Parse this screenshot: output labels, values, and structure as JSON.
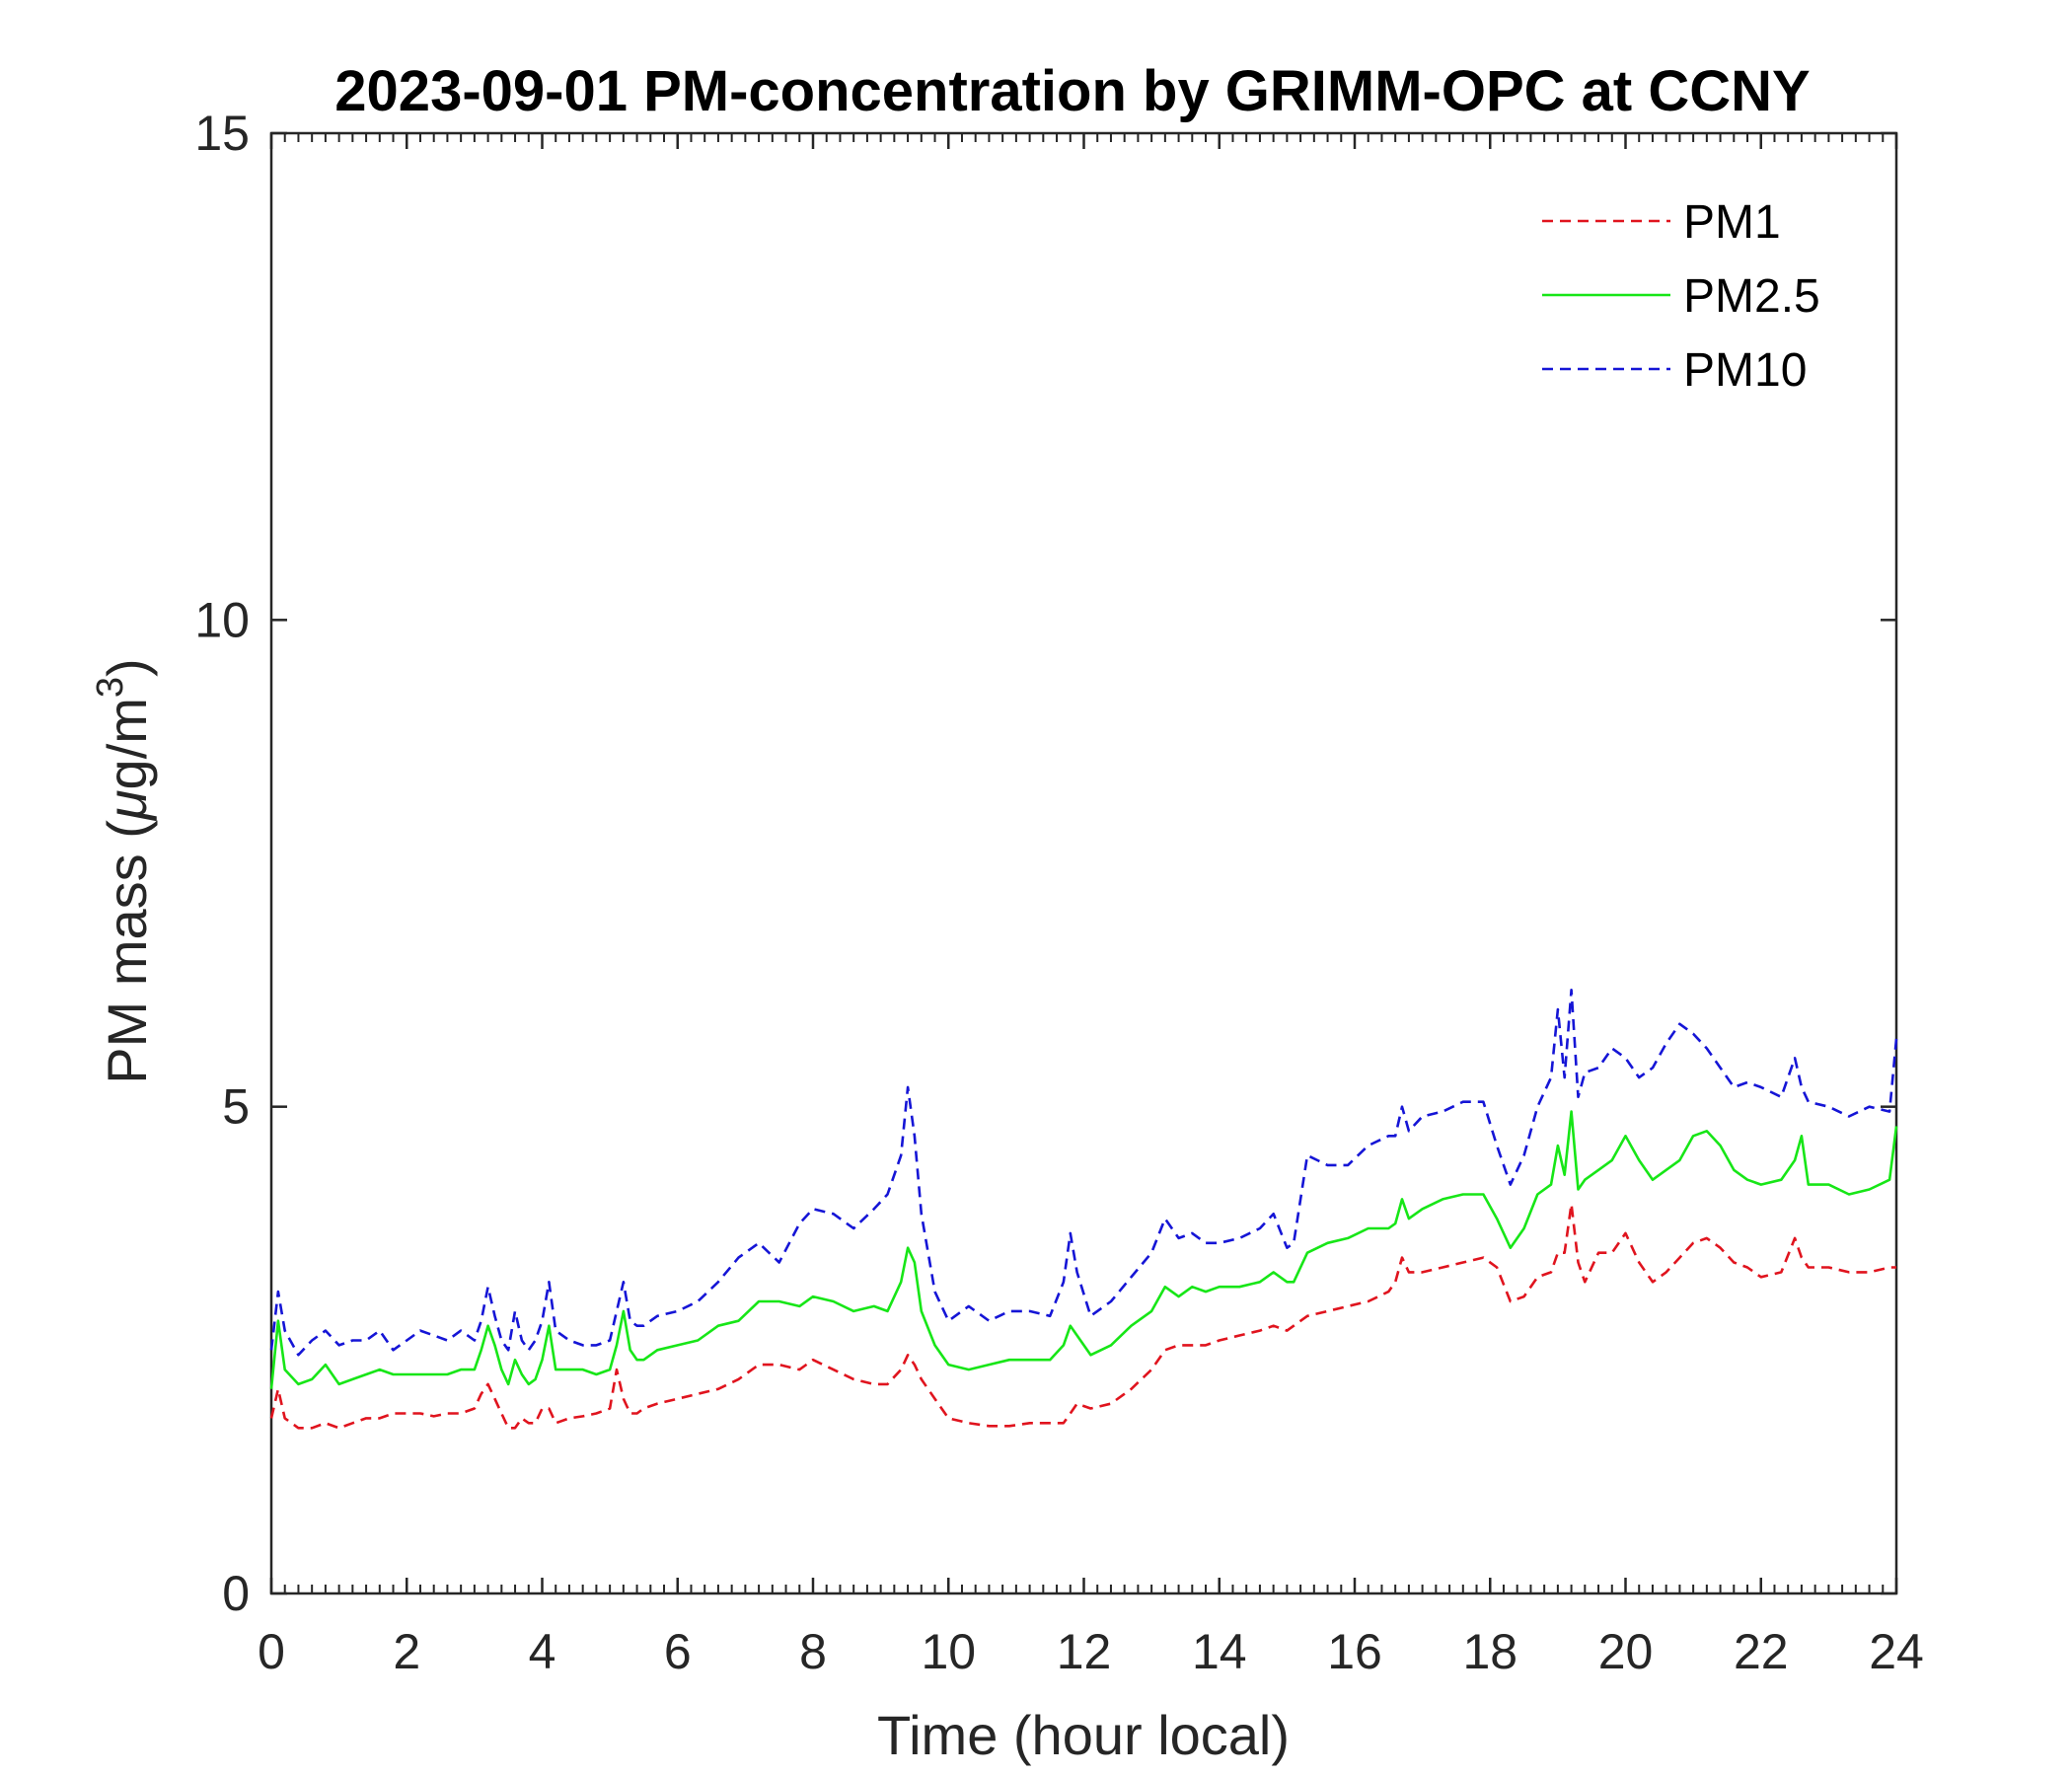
{
  "chart_data": {
    "type": "line",
    "title": "2023-09-01 PM-concentration by GRIMM-OPC at CCNY",
    "xlabel": "Time (hour local)",
    "ylabel_main": "PM mass (",
    "ylabel_mu": "μ",
    "ylabel_unit": "g/m",
    "ylabel_sup": "3",
    "ylabel_close": ")",
    "xlim": [
      0,
      24
    ],
    "ylim": [
      0,
      15
    ],
    "xticks": [
      0,
      2,
      4,
      6,
      8,
      10,
      12,
      14,
      16,
      18,
      20,
      22,
      24
    ],
    "xtick_labels": [
      "0",
      "2",
      "4",
      "6",
      "8",
      "10",
      "12",
      "14",
      "16",
      "18",
      "20",
      "22",
      "24"
    ],
    "yticks": [
      0,
      5,
      10,
      15
    ],
    "ytick_labels": [
      "0",
      "5",
      "10",
      "15"
    ],
    "x_minor_step": 0.2,
    "grid": false,
    "legend_position": "top-right",
    "x": [
      0,
      0.1,
      0.2,
      0.4,
      0.6,
      0.8,
      1.0,
      1.2,
      1.4,
      1.6,
      1.8,
      2.0,
      2.2,
      2.4,
      2.6,
      2.8,
      3.0,
      3.1,
      3.2,
      3.3,
      3.4,
      3.5,
      3.6,
      3.7,
      3.8,
      3.9,
      4.0,
      4.1,
      4.2,
      4.4,
      4.6,
      4.8,
      5.0,
      5.1,
      5.2,
      5.3,
      5.4,
      5.5,
      5.7,
      6.0,
      6.3,
      6.6,
      6.9,
      7.2,
      7.5,
      7.8,
      8.0,
      8.3,
      8.6,
      8.9,
      9.1,
      9.3,
      9.4,
      9.5,
      9.6,
      9.8,
      10.0,
      10.3,
      10.6,
      10.9,
      11.2,
      11.5,
      11.7,
      11.8,
      11.9,
      12.1,
      12.4,
      12.7,
      13.0,
      13.2,
      13.4,
      13.6,
      13.8,
      14.0,
      14.3,
      14.6,
      14.8,
      15.0,
      15.1,
      15.3,
      15.6,
      15.9,
      16.2,
      16.5,
      16.6,
      16.7,
      16.8,
      17.0,
      17.3,
      17.6,
      17.9,
      18.1,
      18.3,
      18.5,
      18.7,
      18.9,
      19.0,
      19.1,
      19.2,
      19.3,
      19.4,
      19.6,
      19.8,
      20.0,
      20.2,
      20.4,
      20.6,
      20.8,
      21.0,
      21.2,
      21.4,
      21.6,
      21.8,
      22.0,
      22.3,
      22.5,
      22.6,
      22.7,
      23.0,
      23.3,
      23.6,
      23.9,
      24.0
    ],
    "series": [
      {
        "name": "PM1",
        "color": "#e0141e",
        "style": "dashed",
        "values": [
          1.8,
          2.1,
          1.8,
          1.7,
          1.7,
          1.75,
          1.7,
          1.75,
          1.8,
          1.8,
          1.85,
          1.85,
          1.85,
          1.82,
          1.85,
          1.85,
          1.9,
          2.05,
          2.15,
          2.0,
          1.85,
          1.7,
          1.7,
          1.8,
          1.75,
          1.75,
          1.9,
          1.9,
          1.75,
          1.8,
          1.82,
          1.85,
          1.9,
          2.3,
          2.0,
          1.85,
          1.85,
          1.9,
          1.95,
          2.0,
          2.05,
          2.1,
          2.2,
          2.35,
          2.35,
          2.3,
          2.4,
          2.3,
          2.2,
          2.15,
          2.15,
          2.3,
          2.45,
          2.35,
          2.2,
          2.0,
          1.8,
          1.75,
          1.72,
          1.72,
          1.75,
          1.75,
          1.75,
          1.85,
          1.95,
          1.9,
          1.95,
          2.1,
          2.3,
          2.5,
          2.55,
          2.55,
          2.55,
          2.6,
          2.65,
          2.7,
          2.75,
          2.7,
          2.75,
          2.85,
          2.9,
          2.95,
          3.0,
          3.1,
          3.2,
          3.45,
          3.3,
          3.3,
          3.35,
          3.4,
          3.45,
          3.35,
          3.0,
          3.05,
          3.25,
          3.3,
          3.5,
          3.5,
          4.0,
          3.4,
          3.2,
          3.5,
          3.5,
          3.7,
          3.4,
          3.2,
          3.3,
          3.45,
          3.6,
          3.65,
          3.55,
          3.4,
          3.35,
          3.25,
          3.3,
          3.65,
          3.45,
          3.35,
          3.35,
          3.3,
          3.3,
          3.35,
          3.35
        ]
      },
      {
        "name": "PM2.5",
        "color": "#17e617",
        "style": "solid",
        "values": [
          2.1,
          2.8,
          2.3,
          2.15,
          2.2,
          2.35,
          2.15,
          2.2,
          2.25,
          2.3,
          2.25,
          2.25,
          2.25,
          2.25,
          2.25,
          2.3,
          2.3,
          2.5,
          2.75,
          2.55,
          2.3,
          2.15,
          2.4,
          2.25,
          2.15,
          2.2,
          2.4,
          2.75,
          2.3,
          2.3,
          2.3,
          2.25,
          2.3,
          2.55,
          2.9,
          2.5,
          2.4,
          2.4,
          2.5,
          2.55,
          2.6,
          2.75,
          2.8,
          3.0,
          3.0,
          2.95,
          3.05,
          3.0,
          2.9,
          2.95,
          2.9,
          3.2,
          3.55,
          3.4,
          2.9,
          2.55,
          2.35,
          2.3,
          2.35,
          2.4,
          2.4,
          2.4,
          2.55,
          2.75,
          2.65,
          2.45,
          2.55,
          2.75,
          2.9,
          3.15,
          3.05,
          3.15,
          3.1,
          3.15,
          3.15,
          3.2,
          3.3,
          3.2,
          3.2,
          3.5,
          3.6,
          3.65,
          3.75,
          3.75,
          3.8,
          4.05,
          3.85,
          3.95,
          4.05,
          4.1,
          4.1,
          3.85,
          3.55,
          3.75,
          4.1,
          4.2,
          4.6,
          4.3,
          4.95,
          4.15,
          4.25,
          4.35,
          4.45,
          4.7,
          4.45,
          4.25,
          4.35,
          4.45,
          4.7,
          4.75,
          4.6,
          4.35,
          4.25,
          4.2,
          4.25,
          4.45,
          4.7,
          4.2,
          4.2,
          4.1,
          4.15,
          4.25,
          4.8
        ]
      },
      {
        "name": "PM10",
        "color": "#1515d6",
        "style": "dashed",
        "values": [
          2.5,
          3.1,
          2.7,
          2.45,
          2.6,
          2.7,
          2.55,
          2.6,
          2.6,
          2.7,
          2.5,
          2.6,
          2.7,
          2.65,
          2.6,
          2.7,
          2.6,
          2.8,
          3.15,
          2.85,
          2.6,
          2.5,
          2.9,
          2.6,
          2.5,
          2.6,
          2.8,
          3.2,
          2.7,
          2.6,
          2.55,
          2.55,
          2.6,
          2.9,
          3.2,
          2.8,
          2.75,
          2.75,
          2.85,
          2.9,
          3.0,
          3.2,
          3.45,
          3.6,
          3.4,
          3.8,
          3.95,
          3.9,
          3.75,
          3.95,
          4.1,
          4.5,
          5.2,
          4.7,
          3.9,
          3.1,
          2.8,
          2.95,
          2.8,
          2.9,
          2.9,
          2.85,
          3.2,
          3.7,
          3.3,
          2.85,
          3.0,
          3.25,
          3.5,
          3.85,
          3.65,
          3.7,
          3.6,
          3.6,
          3.65,
          3.75,
          3.9,
          3.55,
          3.6,
          4.5,
          4.4,
          4.4,
          4.6,
          4.7,
          4.7,
          5.0,
          4.75,
          4.9,
          4.95,
          5.05,
          5.05,
          4.6,
          4.2,
          4.5,
          5.0,
          5.3,
          6.0,
          5.3,
          6.2,
          5.1,
          5.35,
          5.4,
          5.6,
          5.5,
          5.3,
          5.4,
          5.65,
          5.85,
          5.75,
          5.6,
          5.4,
          5.2,
          5.25,
          5.2,
          5.1,
          5.5,
          5.2,
          5.05,
          5.0,
          4.9,
          5.0,
          4.95,
          5.7
        ]
      }
    ]
  }
}
